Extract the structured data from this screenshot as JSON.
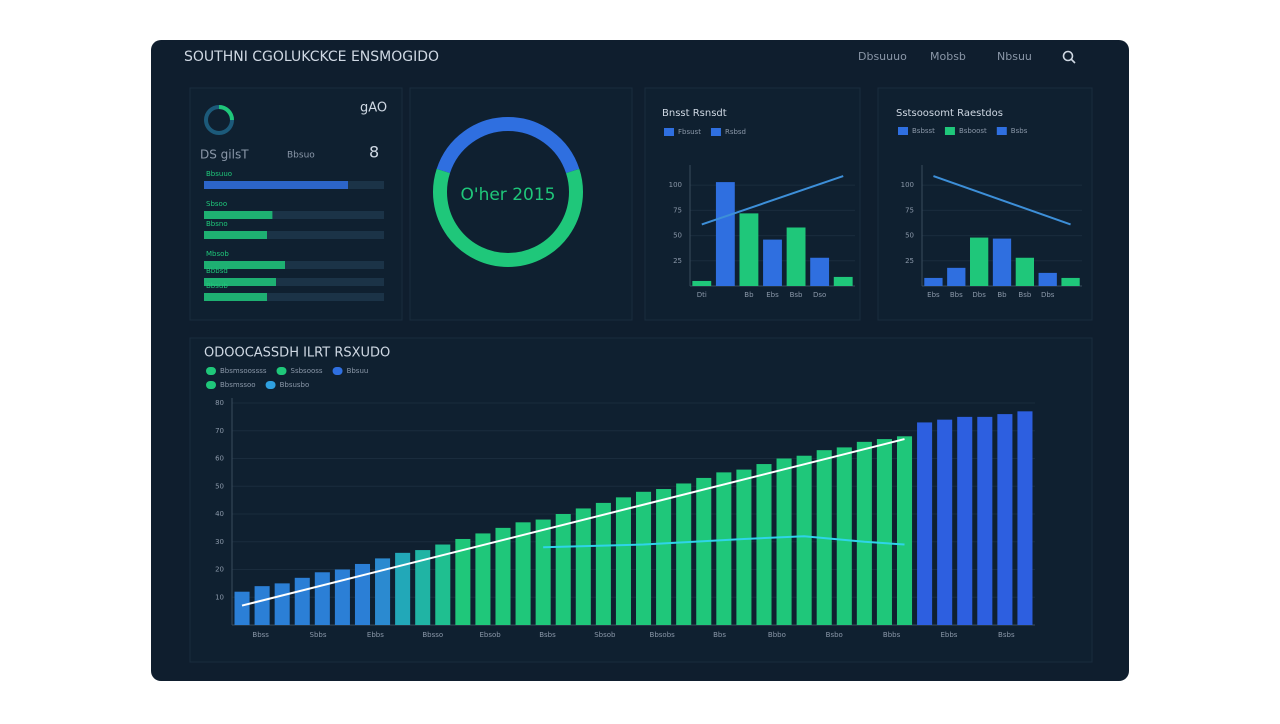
{
  "header": {
    "title": "SOUTHNI CGOLUKCKCE ENSMOGIDO",
    "nav": [
      "Dbsuuuo",
      "Mobsb",
      "Nbsuu"
    ]
  },
  "summary": {
    "label": "gAO",
    "caption": "DS gilsT",
    "sub": "Bbsuo",
    "digit": "8",
    "rows": [
      {
        "name": "Bbsuuo",
        "value": 80
      },
      {
        "name": "Sbsoo",
        "value": 38
      },
      {
        "name": "Bbsno",
        "value": 35
      },
      {
        "name": "Mbsob",
        "value": 45
      },
      {
        "name": "Bbbsd",
        "value": 40
      },
      {
        "name": "Bbsub",
        "value": 35
      }
    ]
  },
  "chart_data": [
    {
      "type": "pie",
      "donut": true,
      "center_label": "O'her 2015",
      "values": [
        40,
        60
      ],
      "colors": [
        "#2f6fe0",
        "#1fc77a"
      ]
    },
    {
      "type": "bar",
      "title": "Bnsst Rsnsdt",
      "series": [
        {
          "name": "Fbsust",
          "color": "#2f6fe0"
        },
        {
          "name": "Rsbsd",
          "color": "#2f6fe0"
        }
      ],
      "categories": [
        "Dti",
        null,
        "Bb",
        "Ebs",
        "Bsb",
        "Dso",
        null
      ],
      "values": [
        5,
        103,
        72,
        46,
        58,
        28,
        9
      ],
      "colors": [
        "#1fc77a",
        "#2f6fe0",
        "#1fc77a",
        "#2f6fe0",
        "#1fc77a",
        "#2f6fe0",
        "#1fc77a"
      ],
      "trend": {
        "x": [
          0,
          6
        ],
        "values": [
          61,
          109
        ]
      },
      "ylim": [
        0,
        115
      ],
      "yticks": [
        25,
        50,
        75,
        100
      ]
    },
    {
      "type": "bar",
      "title": "Sstsoosomt Raestdos",
      "series": [
        {
          "name": "Bsbsst",
          "color": "#2f6fe0"
        },
        {
          "name": "Bsboost",
          "color": "#1fc77a"
        },
        {
          "name": "Bsbs",
          "color": "#2f6fe0"
        }
      ],
      "categories": [
        "Ebs",
        "Bbs",
        "Dbs",
        "Bb",
        "Bsb",
        "Dbs",
        null
      ],
      "values": [
        8,
        18,
        48,
        47,
        28,
        13,
        8
      ],
      "colors": [
        "#2f6fe0",
        "#2f6fe0",
        "#1fc77a",
        "#2f6fe0",
        "#1fc77a",
        "#2f6fe0",
        "#1fc77a"
      ],
      "trend": {
        "x": [
          0,
          6
        ],
        "values": [
          109,
          61
        ]
      },
      "ylim": [
        0,
        115
      ],
      "yticks": [
        25,
        50,
        75,
        100
      ]
    },
    {
      "type": "bar",
      "title": "ODOOCASSDH ILRT RSXUDO",
      "series": [
        {
          "name": "Bbsmsoossss",
          "color": "#1fc77a"
        },
        {
          "name": "Ssbsooss",
          "color": "#1fc77a"
        },
        {
          "name": "Bbsuu",
          "color": "#2f6fe0"
        },
        {
          "name": "Bbsmssoo",
          "color": "#1fc77a"
        },
        {
          "name": "Bbsusbo",
          "color": "#2fa0e0"
        }
      ],
      "values": [
        12,
        14,
        15,
        17,
        19,
        20,
        22,
        24,
        26,
        27,
        29,
        31,
        33,
        35,
        37,
        38,
        40,
        42,
        44,
        46,
        48,
        49,
        51,
        53,
        55,
        56,
        58,
        60,
        61,
        63,
        64,
        66,
        67,
        68,
        73,
        74,
        75,
        75,
        76,
        77
      ],
      "colors": [
        "#2b7fd6",
        "#2b7fd6",
        "#2b7fd6",
        "#2b7fd6",
        "#2b7fd6",
        "#2b7fd6",
        "#2b7fd6",
        "#2b8ad0",
        "#22a8b8",
        "#20b4a4",
        "#1fbf90",
        "#1fc77a",
        "#1fc77a",
        "#1fc77a",
        "#1fc77a",
        "#1fc77a",
        "#1fc77a",
        "#1fc77a",
        "#1fc77a",
        "#1fc77a",
        "#1fc77a",
        "#1fc77a",
        "#1fc77a",
        "#1fc77a",
        "#1fc77a",
        "#1fc77a",
        "#1fc77a",
        "#1fc77a",
        "#1fc77a",
        "#1fc77a",
        "#1fc77a",
        "#1fc77a",
        "#1fc77a",
        "#1fc77a",
        "#2d5fe0",
        "#2d5fe0",
        "#2d5fe0",
        "#2d5fe0",
        "#2d5fe0",
        "#2d5fe0"
      ],
      "lines": [
        {
          "color": "#ffffff",
          "x": [
            0,
            33
          ],
          "values": [
            7,
            67
          ]
        },
        {
          "color": "#2fd4e8",
          "x": [
            15,
            20,
            25,
            28,
            31,
            33
          ],
          "values": [
            28,
            29,
            31,
            32,
            30,
            29
          ]
        }
      ],
      "xlabels": [
        "Bbss",
        "Sbbs",
        "Ebbs",
        "Bbsso",
        "Ebsob",
        "Bsbs",
        "Sbsob",
        "Bbsobs",
        "Bbs",
        "Bbbo",
        "Bsbo",
        "Bbbs",
        "Ebbs",
        "Bsbs"
      ],
      "ylim": [
        0,
        80
      ],
      "yticks": [
        10,
        20,
        30,
        40,
        50,
        60,
        70,
        80
      ]
    }
  ]
}
